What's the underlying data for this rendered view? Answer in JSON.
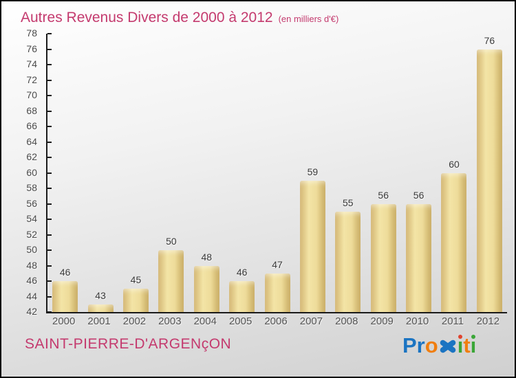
{
  "title": {
    "text": "Autres Revenus Divers de 2000 à 2012",
    "subtitle": "(en milliers d'€)"
  },
  "chart_data": {
    "type": "bar",
    "categories": [
      "2000",
      "2001",
      "2002",
      "2003",
      "2004",
      "2005",
      "2006",
      "2007",
      "2008",
      "2009",
      "2010",
      "2011",
      "2012"
    ],
    "values": [
      46,
      43,
      45,
      50,
      48,
      46,
      47,
      59,
      55,
      56,
      56,
      60,
      76
    ],
    "title": "Autres Revenus Divers de 2000 à 2012",
    "xlabel": "",
    "ylabel": "",
    "ylim": [
      42,
      78
    ],
    "ytick_step": 2,
    "grid": false,
    "legend": "none",
    "bar_gradient": [
      "#d3b673",
      "#f3e4a6",
      "#eedc9a",
      "#c8ab61"
    ],
    "axis_color": "#1a1a1a",
    "value_label_color": "#3a3a3a",
    "tick_label_color": "#4a4a4a"
  },
  "footer": {
    "city": "SAINT-PIERRE-D'ARGENçON"
  },
  "brand": {
    "name": "Proxiti",
    "segments": [
      {
        "text": "Pr",
        "color": "#1b74c2"
      },
      {
        "text": "o",
        "color": "#f07e0f"
      },
      {
        "text": "x",
        "color": "#1b74c2",
        "style": "x-mark"
      },
      {
        "text": "i",
        "color": "#3aa637",
        "dot": "#e0432e"
      },
      {
        "text": "t",
        "color": "#f07e0f"
      },
      {
        "text": "i",
        "color": "#3aa637",
        "dot": "#3aa637"
      }
    ]
  },
  "colors": {
    "accent_pink": "#c43a6e",
    "background_top": "#ffffff",
    "background_bottom": "#d0d0d0"
  }
}
